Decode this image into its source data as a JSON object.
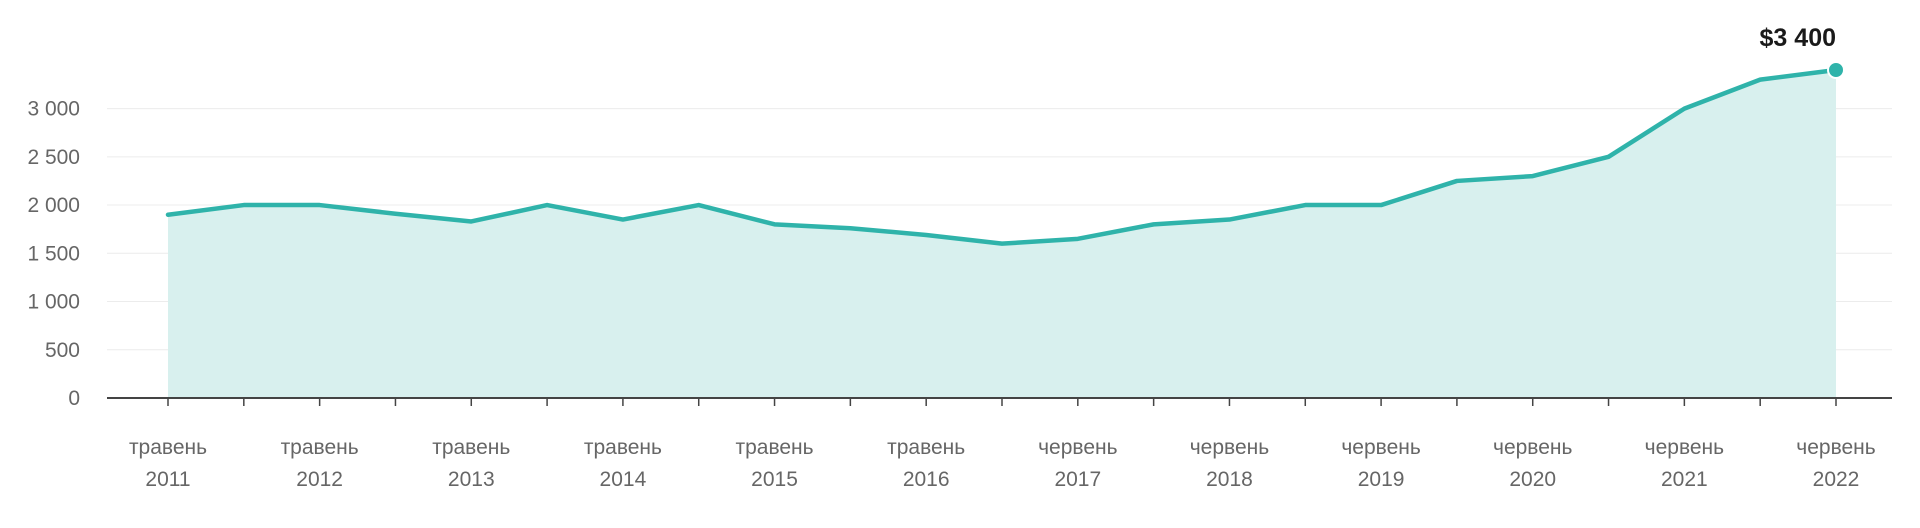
{
  "chart_data": {
    "type": "area",
    "title": "",
    "xlabel": "",
    "ylabel": "",
    "ylim": [
      0,
      3400
    ],
    "yticks": [
      0,
      500,
      1000,
      1500,
      2000,
      2500,
      3000
    ],
    "ytick_labels": [
      "0",
      "500",
      "1 000",
      "1 500",
      "2 000",
      "2 500",
      "3 000"
    ],
    "grid": true,
    "legend": "none",
    "line_color": "#2fb3aa",
    "fill_color": "#d8f0ee",
    "x_ticks": [
      {
        "at": 0,
        "line1": "травень",
        "line2": "2011"
      },
      {
        "at": 2,
        "line1": "травень",
        "line2": "2012"
      },
      {
        "at": 4,
        "line1": "травень",
        "line2": "2013"
      },
      {
        "at": 6,
        "line1": "травень",
        "line2": "2014"
      },
      {
        "at": 8,
        "line1": "травень",
        "line2": "2015"
      },
      {
        "at": 10,
        "line1": "травень",
        "line2": "2016"
      },
      {
        "at": 12,
        "line1": "червень",
        "line2": "2017"
      },
      {
        "at": 14,
        "line1": "червень",
        "line2": "2018"
      },
      {
        "at": 16,
        "line1": "червень",
        "line2": "2019"
      },
      {
        "at": 18,
        "line1": "червень",
        "line2": "2020"
      },
      {
        "at": 20,
        "line1": "червень",
        "line2": "2021"
      },
      {
        "at": 22,
        "line1": "червень",
        "line2": "2022"
      }
    ],
    "series": [
      {
        "values": [
          1900,
          2000,
          2000,
          1910,
          1830,
          2000,
          1850,
          2000,
          1800,
          1760,
          1690,
          1600,
          1650,
          1800,
          1850,
          2000,
          2000,
          2250,
          2300,
          2500,
          3000,
          3300,
          3400
        ]
      }
    ],
    "annotation": {
      "index": 22,
      "label": "$3 400"
    }
  }
}
